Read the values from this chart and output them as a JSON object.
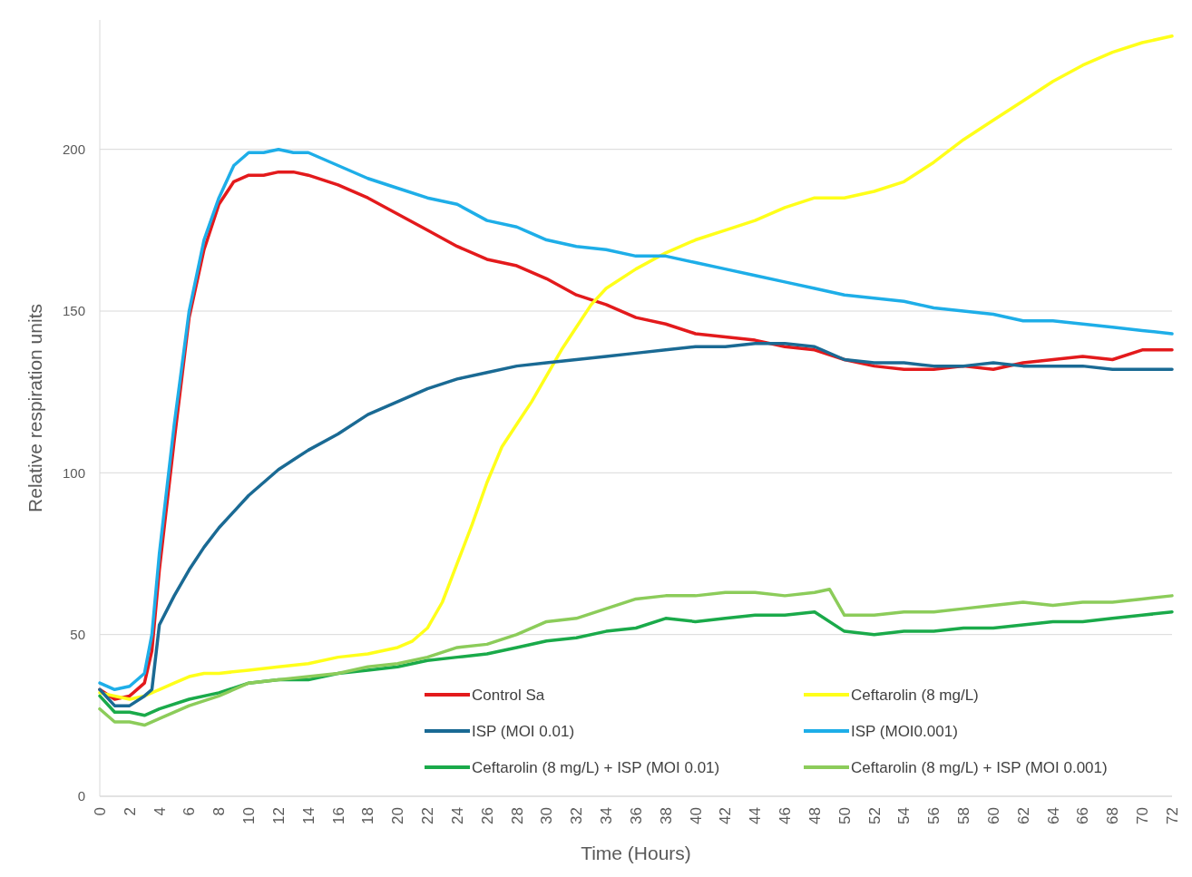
{
  "chart_data": {
    "type": "line",
    "xlabel": "Time (Hours)",
    "ylabel": "Relative respiration units",
    "xlim": [
      0,
      72
    ],
    "ylim": [
      0,
      240
    ],
    "xticks": [
      0,
      2,
      4,
      6,
      8,
      10,
      12,
      14,
      16,
      18,
      20,
      22,
      24,
      26,
      28,
      30,
      32,
      34,
      36,
      38,
      40,
      42,
      44,
      46,
      48,
      50,
      52,
      54,
      56,
      58,
      60,
      62,
      64,
      66,
      68,
      70,
      72
    ],
    "yticks": [
      0,
      50,
      100,
      150,
      200
    ],
    "grid": "y",
    "legend": "bottom",
    "line_style": "solid",
    "marker": "none",
    "series": [
      {
        "name": "Control Sa",
        "color": "#e31a1c",
        "x": [
          0,
          1,
          2,
          3,
          3.5,
          4,
          5,
          6,
          7,
          8,
          9,
          10,
          11,
          12,
          13,
          14,
          16,
          18,
          20,
          22,
          24,
          26,
          28,
          30,
          32,
          34,
          36,
          38,
          40,
          42,
          44,
          46,
          48,
          50,
          52,
          54,
          56,
          58,
          60,
          62,
          64,
          66,
          68,
          70,
          72
        ],
        "values": [
          33,
          30,
          31,
          35,
          45,
          70,
          110,
          148,
          169,
          183,
          190,
          192,
          192,
          193,
          193,
          192,
          189,
          185,
          180,
          175,
          170,
          166,
          164,
          160,
          155,
          152,
          148,
          146,
          143,
          142,
          141,
          139,
          138,
          135,
          133,
          132,
          132,
          133,
          132,
          134,
          135,
          136,
          135,
          138,
          138
        ]
      },
      {
        "name": "Ceftarolin (8 mg/L)",
        "color": "#ffff1a",
        "x": [
          0,
          1,
          2,
          3,
          4,
          5,
          6,
          7,
          8,
          10,
          12,
          14,
          16,
          18,
          20,
          21,
          22,
          23,
          24,
          25,
          26,
          27,
          28,
          29,
          30,
          31,
          32,
          33,
          34,
          36,
          38,
          40,
          42,
          44,
          46,
          48,
          50,
          52,
          54,
          56,
          58,
          60,
          62,
          64,
          66,
          68,
          70,
          72
        ],
        "values": [
          32,
          31,
          30,
          31,
          33,
          35,
          37,
          38,
          38,
          39,
          40,
          41,
          43,
          44,
          46,
          48,
          52,
          60,
          72,
          84,
          97,
          108,
          115,
          122,
          130,
          138,
          145,
          152,
          157,
          163,
          168,
          172,
          175,
          178,
          182,
          185,
          185,
          187,
          190,
          196,
          203,
          209,
          215,
          221,
          226,
          230,
          233,
          235
        ]
      },
      {
        "name": "ISP (MOI 0.01)",
        "color": "#1a6a94",
        "x": [
          0,
          1,
          2,
          3,
          3.5,
          4,
          5,
          6,
          7,
          8,
          9,
          10,
          11,
          12,
          13,
          14,
          16,
          18,
          20,
          22,
          24,
          26,
          28,
          30,
          32,
          34,
          36,
          38,
          40,
          42,
          44,
          46,
          48,
          50,
          52,
          54,
          56,
          58,
          60,
          62,
          64,
          66,
          68,
          70,
          72
        ],
        "values": [
          33,
          28,
          28,
          31,
          33,
          53,
          62,
          70,
          77,
          83,
          88,
          93,
          97,
          101,
          104,
          107,
          112,
          118,
          122,
          126,
          129,
          131,
          133,
          134,
          135,
          136,
          137,
          138,
          139,
          139,
          140,
          140,
          139,
          135,
          134,
          134,
          133,
          133,
          134,
          133,
          133,
          133,
          132,
          132,
          132
        ]
      },
      {
        "name": "ISP (MOI0.001)",
        "color": "#1eaee8",
        "x": [
          0,
          1,
          2,
          3,
          3.5,
          4,
          5,
          6,
          7,
          8,
          9,
          10,
          11,
          12,
          13,
          14,
          16,
          18,
          20,
          22,
          24,
          26,
          28,
          30,
          32,
          34,
          36,
          38,
          40,
          42,
          44,
          46,
          48,
          50,
          52,
          54,
          56,
          58,
          60,
          62,
          64,
          66,
          68,
          70,
          72
        ],
        "values": [
          35,
          33,
          34,
          38,
          50,
          75,
          115,
          150,
          172,
          185,
          195,
          199,
          199,
          200,
          199,
          199,
          195,
          191,
          188,
          185,
          183,
          178,
          176,
          172,
          170,
          169,
          167,
          167,
          165,
          163,
          161,
          159,
          157,
          155,
          154,
          153,
          151,
          150,
          149,
          147,
          147,
          146,
          145,
          144,
          143
        ]
      },
      {
        "name": "Ceftarolin (8 mg/L) + ISP (MOI 0.01)",
        "color": "#1aaa4a",
        "x": [
          0,
          1,
          2,
          3,
          4,
          6,
          8,
          10,
          12,
          14,
          16,
          18,
          20,
          22,
          24,
          26,
          28,
          30,
          32,
          34,
          36,
          38,
          40,
          42,
          44,
          46,
          48,
          50,
          52,
          54,
          56,
          58,
          60,
          62,
          64,
          66,
          68,
          70,
          72
        ],
        "values": [
          31,
          26,
          26,
          25,
          27,
          30,
          32,
          35,
          36,
          36,
          38,
          39,
          40,
          42,
          43,
          44,
          46,
          48,
          49,
          51,
          52,
          55,
          54,
          55,
          56,
          56,
          57,
          51,
          50,
          51,
          51,
          52,
          52,
          53,
          54,
          54,
          55,
          56,
          57
        ]
      },
      {
        "name": "Ceftarolin (8 mg/L) + ISP (MOI 0.001)",
        "color": "#8ccc5a",
        "x": [
          0,
          1,
          2,
          3,
          4,
          6,
          8,
          10,
          12,
          14,
          16,
          18,
          20,
          22,
          24,
          26,
          28,
          30,
          32,
          34,
          36,
          38,
          40,
          42,
          44,
          46,
          48,
          49,
          50,
          52,
          54,
          56,
          58,
          60,
          62,
          64,
          66,
          68,
          70,
          72
        ],
        "values": [
          27,
          23,
          23,
          22,
          24,
          28,
          31,
          35,
          36,
          37,
          38,
          40,
          41,
          43,
          46,
          47,
          50,
          54,
          55,
          58,
          61,
          62,
          62,
          63,
          63,
          62,
          63,
          64,
          56,
          56,
          57,
          57,
          58,
          59,
          60,
          59,
          60,
          60,
          61,
          62
        ]
      }
    ]
  }
}
